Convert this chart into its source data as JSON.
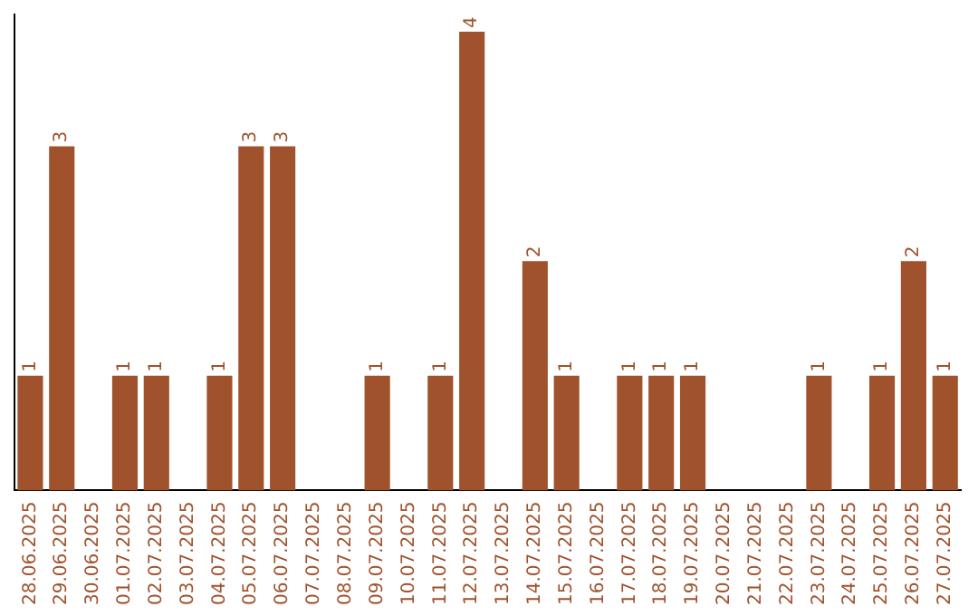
{
  "chart_data": {
    "type": "bar",
    "categories": [
      "28.06.2025",
      "29.06.2025",
      "30.06.2025",
      "01.07.2025",
      "02.07.2025",
      "03.07.2025",
      "04.07.2025",
      "05.07.2025",
      "06.07.2025",
      "07.07.2025",
      "08.07.2025",
      "09.07.2025",
      "10.07.2025",
      "11.07.2025",
      "12.07.2025",
      "13.07.2025",
      "14.07.2025",
      "15.07.2025",
      "16.07.2025",
      "17.07.2025",
      "18.07.2025",
      "19.07.2025",
      "20.07.2025",
      "21.07.2025",
      "22.07.2025",
      "23.07.2025",
      "24.07.2025",
      "25.07.2025",
      "26.07.2025",
      "27.07.2025"
    ],
    "values": [
      1,
      3,
      0,
      1,
      1,
      0,
      1,
      3,
      3,
      0,
      0,
      1,
      0,
      1,
      4,
      0,
      2,
      1,
      0,
      1,
      1,
      1,
      0,
      0,
      0,
      1,
      0,
      1,
      2,
      1
    ],
    "value_labels": [
      "1",
      "3",
      null,
      "1",
      "1",
      null,
      "1",
      "3",
      "3",
      null,
      null,
      "1",
      null,
      "1",
      "4",
      null,
      "2",
      "1",
      null,
      "1",
      "1",
      "1",
      null,
      null,
      null,
      "1",
      null,
      "1",
      "2",
      "1"
    ],
    "color": "#a0522d",
    "ylim": [
      0,
      4.15
    ],
    "tick_labels": "x",
    "grid": false,
    "legend": false
  }
}
